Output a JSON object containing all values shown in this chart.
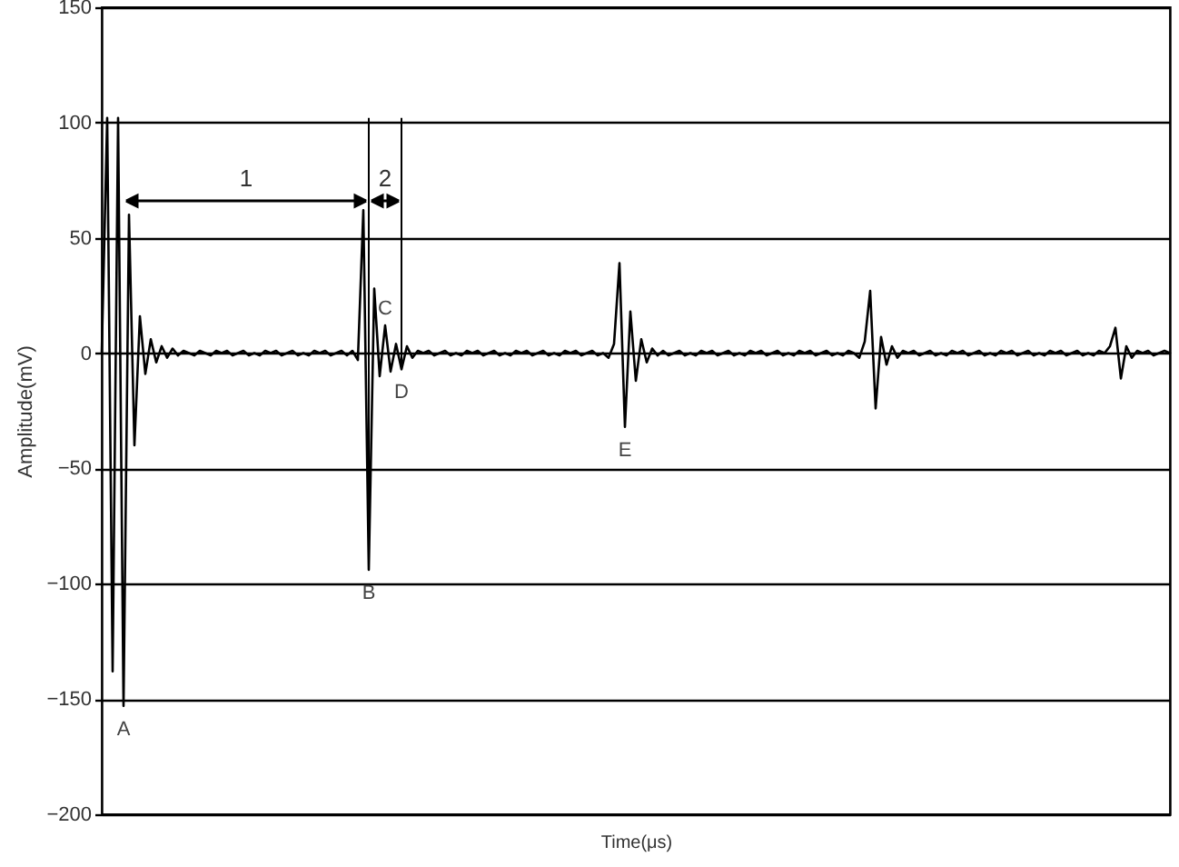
{
  "chart_data": {
    "type": "line",
    "ylabel": "Amplitude(mV)",
    "xlabel": "Time(μs)",
    "categories": [
      null,
      null,
      null,
      null,
      null,
      null,
      null,
      null,
      null,
      null,
      null,
      null,
      null,
      null,
      null,
      null,
      null,
      null,
      null,
      null,
      null,
      null,
      null,
      null,
      null,
      null,
      null,
      null,
      null,
      null,
      null,
      null,
      null,
      null,
      null,
      null,
      null,
      null,
      null,
      null,
      null,
      null,
      null,
      null,
      null,
      null,
      null,
      null,
      null,
      null,
      null,
      null,
      null,
      null,
      null,
      null,
      null,
      null,
      null,
      null,
      null,
      null,
      null,
      null,
      null,
      null,
      null,
      null,
      null,
      null,
      null,
      null,
      null,
      null,
      null,
      null,
      null,
      null,
      null,
      null,
      null,
      null,
      null,
      null,
      null,
      null,
      null,
      null,
      null,
      null,
      null,
      null,
      null,
      null,
      null,
      null,
      null,
      null,
      null,
      null,
      null,
      null,
      null,
      null,
      null,
      null,
      null,
      null,
      null,
      null,
      null,
      null,
      null,
      null,
      null,
      null,
      null,
      null,
      null,
      null,
      null,
      null,
      null,
      null,
      null,
      null,
      null,
      null,
      null,
      null,
      null,
      null,
      null,
      null,
      null,
      null,
      null,
      null,
      null,
      null,
      null,
      null,
      null,
      null,
      null,
      null,
      null,
      null,
      null,
      null,
      null,
      null,
      null,
      null,
      null,
      null,
      null,
      null,
      null,
      null,
      null,
      null,
      null,
      null,
      null,
      null,
      null,
      null,
      null,
      null,
      null,
      null,
      null,
      null,
      null,
      null,
      null,
      null,
      null,
      null,
      null,
      null,
      null,
      null,
      null,
      null,
      null,
      null,
      null,
      null,
      null,
      null,
      null,
      null,
      null,
      null,
      null
    ],
    "series": [
      {
        "color": "#000000",
        "values": [
          0,
          102,
          -138,
          102,
          -153,
          60,
          -40,
          16,
          -9,
          6,
          -4,
          3,
          -2,
          2,
          -1,
          1,
          0,
          -1,
          1,
          0,
          -1,
          1,
          0,
          1,
          -1,
          0,
          1,
          -1,
          0,
          -1,
          1,
          0,
          1,
          -1,
          0,
          1,
          -1,
          0,
          -1,
          1,
          0,
          1,
          -1,
          0,
          1,
          -1,
          1,
          -3,
          62,
          -94,
          28,
          -10,
          12,
          -8,
          4,
          -7,
          3,
          -2,
          1,
          0,
          1,
          -1,
          0,
          1,
          -1,
          0,
          -1,
          1,
          0,
          1,
          -1,
          0,
          1,
          -1,
          0,
          -1,
          1,
          0,
          1,
          -1,
          0,
          1,
          -1,
          0,
          -1,
          1,
          0,
          1,
          -1,
          0,
          1,
          -1,
          0,
          -2,
          4,
          39,
          -32,
          18,
          -12,
          6,
          -4,
          2,
          -1,
          1,
          -1,
          0,
          1,
          -1,
          0,
          -1,
          1,
          0,
          1,
          -1,
          0,
          1,
          -1,
          0,
          -1,
          1,
          0,
          1,
          -1,
          0,
          1,
          -1,
          0,
          -1,
          1,
          0,
          1,
          -1,
          0,
          1,
          -1,
          0,
          -1,
          1,
          0,
          -2,
          5,
          27,
          -24,
          7,
          -5,
          3,
          -2,
          1,
          0,
          1,
          -1,
          0,
          1,
          -1,
          0,
          -1,
          1,
          0,
          1,
          -1,
          0,
          1,
          -1,
          0,
          -1,
          1,
          0,
          1,
          -1,
          0,
          1,
          -1,
          0,
          -1,
          1,
          0,
          1,
          -1,
          0,
          1,
          -1,
          0,
          -1,
          1,
          0,
          3,
          11,
          -11,
          3,
          -2,
          1,
          0,
          1,
          -1,
          0,
          1,
          0
        ]
      }
    ],
    "ylim": [
      -200,
      150
    ],
    "yticks": [
      -200,
      -150,
      -100,
      -50,
      0,
      50,
      100,
      150
    ],
    "grid": "y",
    "tick_labels": "y",
    "line_style": "solid",
    "annotations": [
      {
        "text": "A",
        "y": -153
      },
      {
        "text": "B",
        "y": -94
      },
      {
        "text": "C",
        "y": 12
      },
      {
        "text": "D",
        "y": -7
      },
      {
        "text": "E",
        "y": -32
      },
      "1",
      "2"
    ]
  }
}
